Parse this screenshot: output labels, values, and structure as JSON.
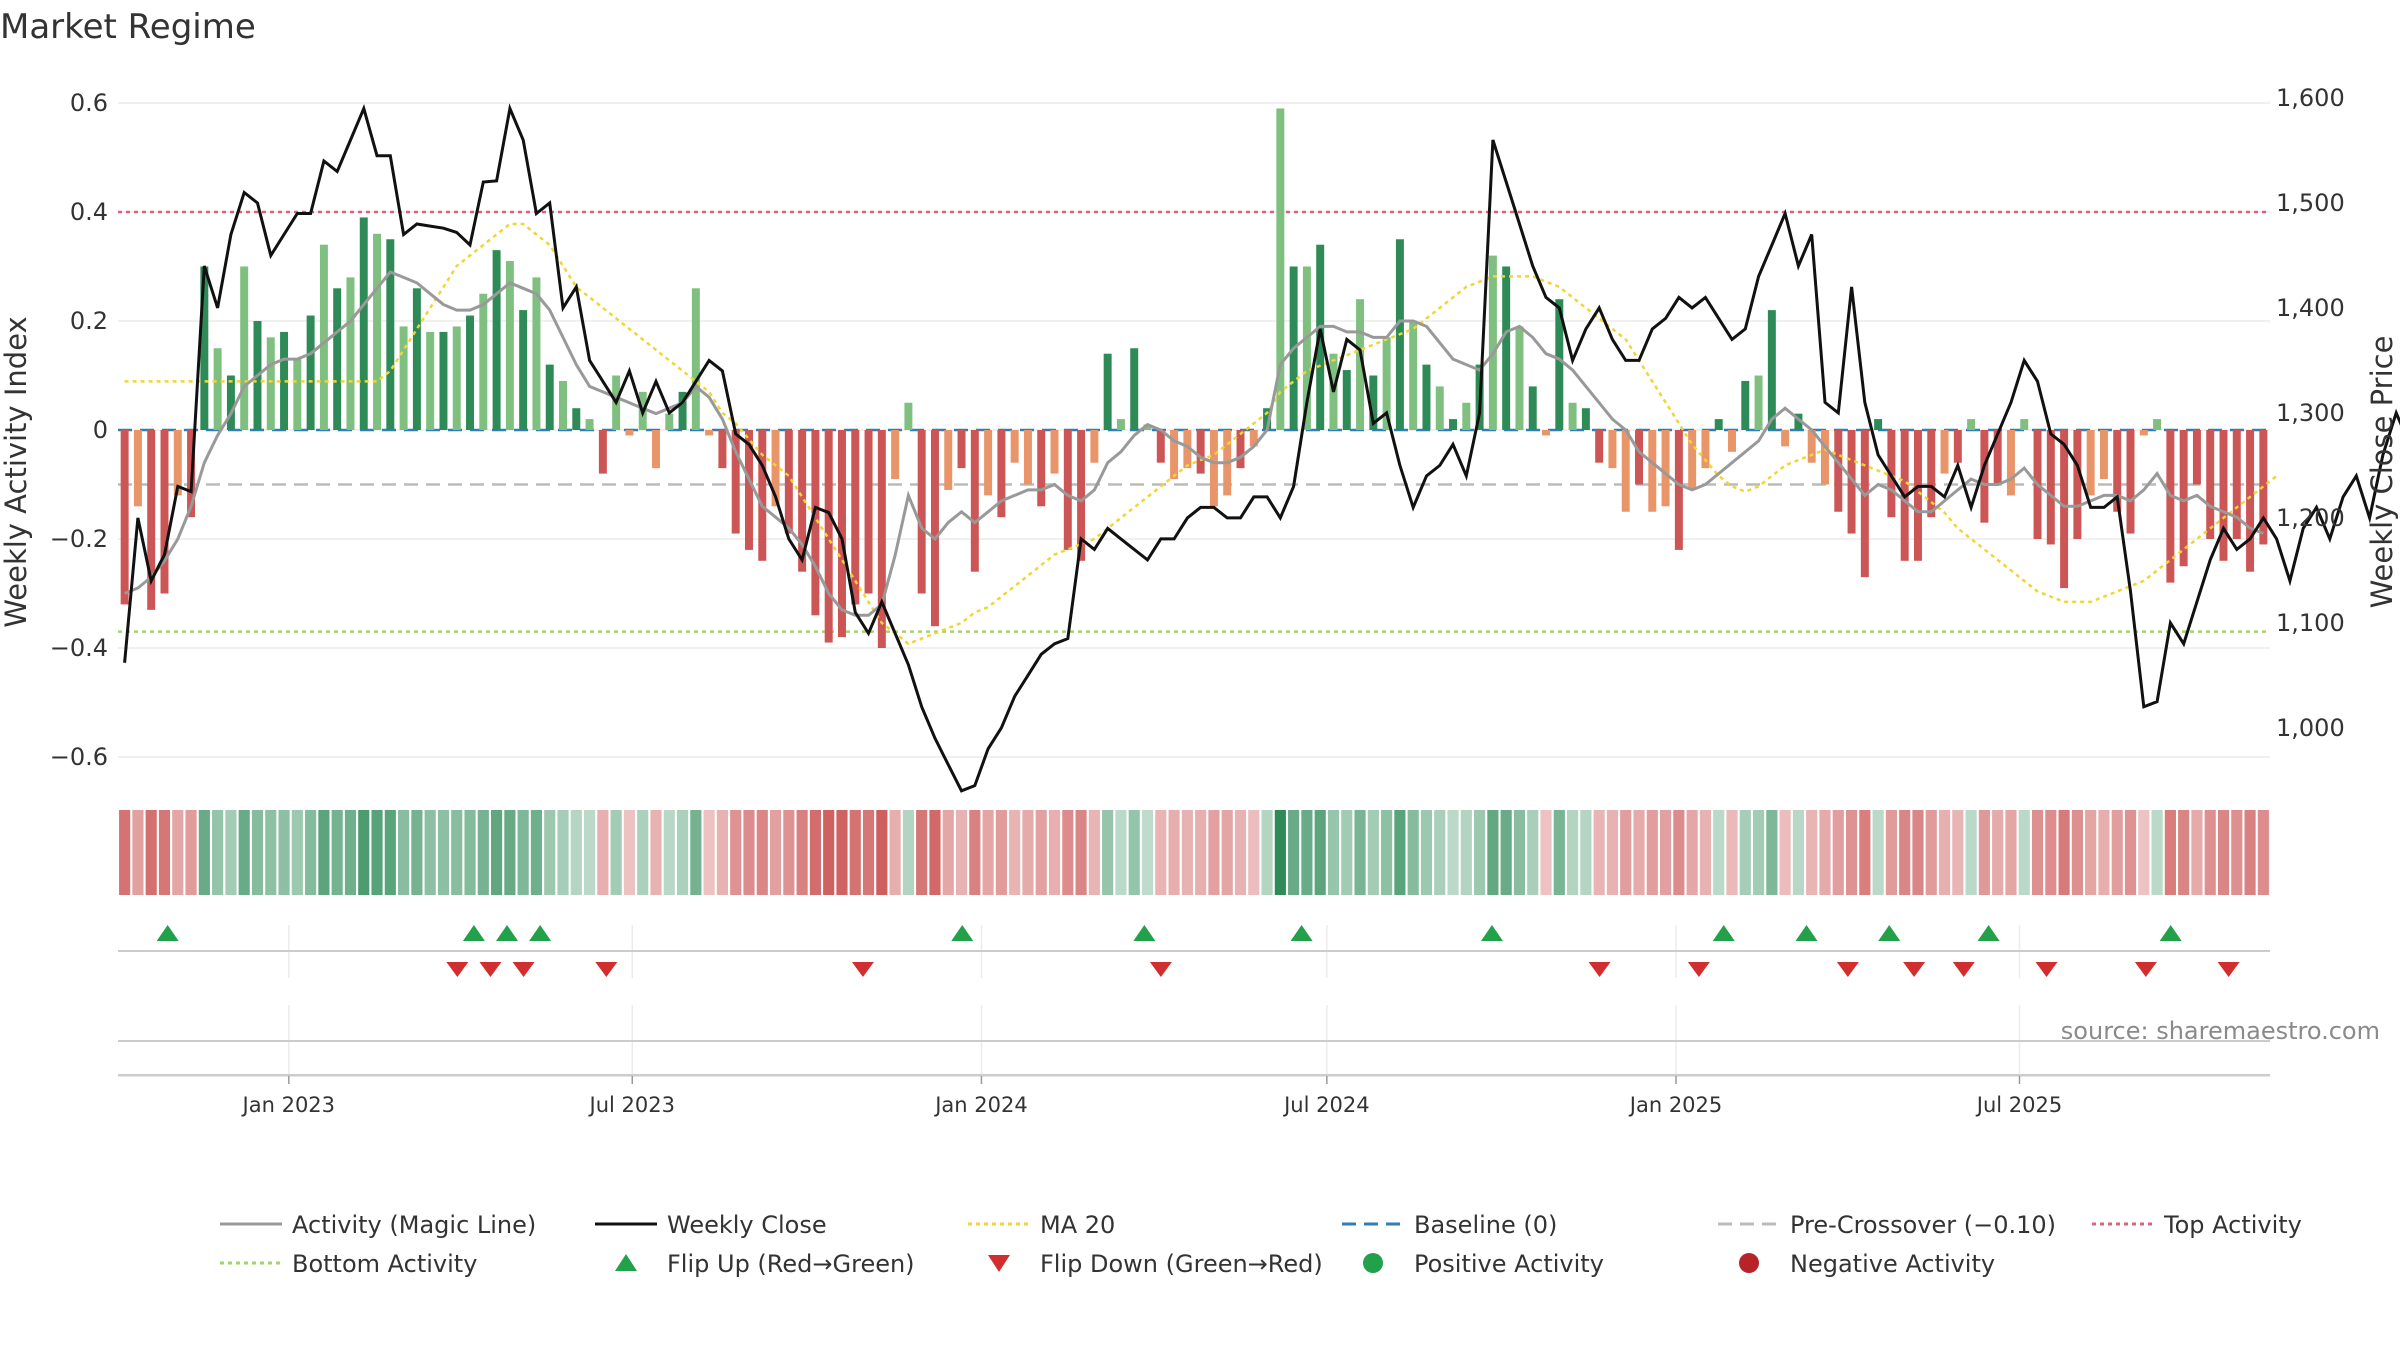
{
  "chart_data": {
    "type": "bar",
    "title": "Market Regime",
    "ylabel_left": "Weekly Activity Index",
    "ylabel_right": "Weekly Close Price",
    "ylim_left": [
      -0.65,
      0.65
    ],
    "ylim_right": [
      930,
      1615
    ],
    "yticks_left": [
      "0.6",
      "0.4",
      "0.2",
      "0",
      "−0.2",
      "−0.4",
      "−0.6"
    ],
    "yticks_right": [
      "1,600",
      "1,500",
      "1,400",
      "1,300",
      "1,200",
      "1,100",
      "1,000"
    ],
    "xticks": [
      "Jan 2023",
      "Jul 2023",
      "Jan 2024",
      "Jul 2024",
      "Jan 2025",
      "Jul 2025"
    ],
    "source": "source: sharemaestro.com",
    "start_date": "2022-10-03",
    "activity": [
      -0.32,
      -0.14,
      -0.33,
      -0.3,
      -0.12,
      -0.16,
      0.3,
      0.15,
      0.1,
      0.3,
      0.2,
      0.17,
      0.18,
      0.13,
      0.21,
      0.34,
      0.26,
      0.28,
      0.39,
      0.36,
      0.35,
      0.19,
      0.26,
      0.18,
      0.18,
      0.19,
      0.21,
      0.25,
      0.33,
      0.31,
      0.22,
      0.28,
      0.12,
      0.09,
      0.04,
      0.02,
      -0.08,
      0.1,
      -0.01,
      0.07,
      -0.07,
      0.03,
      0.07,
      0.26,
      -0.01,
      -0.07,
      -0.19,
      -0.22,
      -0.24,
      -0.14,
      -0.19,
      -0.26,
      -0.34,
      -0.39,
      -0.38,
      -0.32,
      -0.3,
      -0.4,
      -0.09,
      0.05,
      -0.3,
      -0.36,
      -0.11,
      -0.07,
      -0.26,
      -0.12,
      -0.16,
      -0.06,
      -0.1,
      -0.14,
      -0.08,
      -0.22,
      -0.24,
      -0.06,
      0.14,
      0.02,
      0.15,
      0.01,
      -0.06,
      -0.09,
      -0.07,
      -0.08,
      -0.14,
      -0.12,
      -0.07,
      -0.03,
      0.04,
      0.59,
      0.3,
      0.3,
      0.34,
      0.14,
      0.11,
      0.24,
      0.1,
      0.17,
      0.35,
      0.2,
      0.12,
      0.08,
      0.02,
      0.05,
      0.12,
      0.32,
      0.3,
      0.19,
      0.08,
      -0.01,
      0.24,
      0.05,
      0.04,
      -0.06,
      -0.07,
      -0.15,
      -0.1,
      -0.15,
      -0.14,
      -0.22,
      -0.11,
      -0.07,
      0.02,
      -0.04,
      0.09,
      0.1,
      0.22,
      -0.03,
      0.03,
      -0.06,
      -0.1,
      -0.15,
      -0.19,
      -0.27,
      0.02,
      -0.16,
      -0.24,
      -0.24,
      -0.16,
      -0.08,
      -0.06,
      0.02,
      -0.17,
      -0.1,
      -0.12,
      0.02,
      -0.2,
      -0.21,
      -0.29,
      -0.2,
      -0.12,
      -0.09,
      -0.15,
      -0.19,
      -0.01,
      0.02,
      -0.28,
      -0.25,
      -0.1,
      -0.2,
      -0.24,
      -0.2,
      -0.26,
      -0.21
    ],
    "magic_line": [
      -0.3,
      -0.29,
      -0.27,
      -0.24,
      -0.2,
      -0.14,
      -0.06,
      -0.01,
      0.03,
      0.08,
      0.1,
      0.12,
      0.13,
      0.13,
      0.14,
      0.16,
      0.18,
      0.2,
      0.23,
      0.26,
      0.29,
      0.28,
      0.27,
      0.25,
      0.23,
      0.22,
      0.22,
      0.23,
      0.25,
      0.27,
      0.26,
      0.25,
      0.22,
      0.17,
      0.12,
      0.08,
      0.07,
      0.06,
      0.05,
      0.04,
      0.03,
      0.04,
      0.05,
      0.08,
      0.06,
      0.02,
      -0.04,
      -0.09,
      -0.14,
      -0.16,
      -0.18,
      -0.21,
      -0.25,
      -0.3,
      -0.33,
      -0.34,
      -0.34,
      -0.32,
      -0.23,
      -0.12,
      -0.18,
      -0.2,
      -0.17,
      -0.15,
      -0.17,
      -0.15,
      -0.13,
      -0.12,
      -0.11,
      -0.11,
      -0.1,
      -0.12,
      -0.13,
      -0.11,
      -0.06,
      -0.04,
      -0.01,
      0.01,
      0.0,
      -0.02,
      -0.03,
      -0.05,
      -0.06,
      -0.06,
      -0.05,
      -0.03,
      0.0,
      0.12,
      0.15,
      0.17,
      0.19,
      0.19,
      0.18,
      0.18,
      0.17,
      0.17,
      0.2,
      0.2,
      0.19,
      0.16,
      0.13,
      0.12,
      0.11,
      0.14,
      0.18,
      0.19,
      0.17,
      0.14,
      0.13,
      0.11,
      0.08,
      0.05,
      0.02,
      0.0,
      -0.04,
      -0.06,
      -0.08,
      -0.1,
      -0.11,
      -0.1,
      -0.08,
      -0.06,
      -0.04,
      -0.02,
      0.02,
      0.04,
      0.02,
      0.0,
      -0.03,
      -0.06,
      -0.09,
      -0.12,
      -0.1,
      -0.11,
      -0.13,
      -0.15,
      -0.15,
      -0.13,
      -0.11,
      -0.09,
      -0.1,
      -0.1,
      -0.09,
      -0.07,
      -0.1,
      -0.12,
      -0.14,
      -0.14,
      -0.13,
      -0.12,
      -0.12,
      -0.13,
      -0.11,
      -0.08,
      -0.12,
      -0.13,
      -0.12,
      -0.14,
      -0.15,
      -0.16,
      -0.18,
      -0.19
    ],
    "weekly_close": [
      1062,
      1200,
      1140,
      1165,
      1230,
      1225,
      1440,
      1400,
      1470,
      1510,
      1500,
      1450,
      1470,
      1490,
      1490,
      1540,
      1530,
      1560,
      1590,
      1545,
      1545,
      1470,
      1480,
      1478,
      1476,
      1472,
      1460,
      1520,
      1521,
      1590,
      1560,
      1490,
      1500,
      1400,
      1420,
      1350,
      1330,
      1310,
      1340,
      1300,
      1330,
      1300,
      1310,
      1330,
      1350,
      1340,
      1280,
      1270,
      1250,
      1220,
      1180,
      1160,
      1210,
      1205,
      1180,
      1110,
      1090,
      1120,
      1090,
      1060,
      1020,
      990,
      965,
      940,
      945,
      980,
      1000,
      1030,
      1050,
      1070,
      1080,
      1085,
      1180,
      1170,
      1190,
      1180,
      1170,
      1160,
      1180,
      1180,
      1200,
      1210,
      1210,
      1200,
      1200,
      1220,
      1220,
      1200,
      1230,
      1310,
      1380,
      1320,
      1370,
      1360,
      1290,
      1300,
      1250,
      1210,
      1240,
      1250,
      1270,
      1240,
      1300,
      1560,
      1520,
      1480,
      1440,
      1410,
      1400,
      1350,
      1380,
      1400,
      1370,
      1350,
      1350,
      1380,
      1390,
      1410,
      1400,
      1410,
      1390,
      1370,
      1380,
      1430,
      1460,
      1490,
      1440,
      1470,
      1310,
      1300,
      1420,
      1310,
      1260,
      1240,
      1220,
      1230,
      1230,
      1220,
      1250,
      1210,
      1250,
      1280,
      1310,
      1350,
      1330,
      1280,
      1270,
      1250,
      1210,
      1210,
      1220,
      1130,
      1020,
      1025,
      1100,
      1080,
      1120,
      1160,
      1190,
      1170,
      1180,
      1200,
      1180,
      1140,
      1190,
      1210,
      1180,
      1220,
      1240,
      1200,
      1260,
      1300,
      1270,
      1290,
      1300,
      1250,
      1260,
      1265
    ],
    "ma20": [
      1330,
      1330,
      1330,
      1330,
      1330,
      1330,
      1330,
      1330,
      1330,
      1330,
      1330,
      1330,
      1330,
      1330,
      1330,
      1330,
      1330,
      1330,
      1330,
      1330,
      1340,
      1360,
      1380,
      1400,
      1420,
      1440,
      1450,
      1460,
      1470,
      1480,
      1480,
      1470,
      1460,
      1440,
      1420,
      1410,
      1400,
      1390,
      1380,
      1370,
      1360,
      1350,
      1340,
      1330,
      1320,
      1300,
      1290,
      1275,
      1260,
      1250,
      1240,
      1220,
      1200,
      1180,
      1160,
      1140,
      1120,
      1100,
      1090,
      1080,
      1085,
      1090,
      1095,
      1100,
      1110,
      1115,
      1125,
      1135,
      1145,
      1155,
      1165,
      1170,
      1175,
      1180,
      1190,
      1200,
      1210,
      1220,
      1230,
      1240,
      1250,
      1255,
      1260,
      1270,
      1280,
      1290,
      1300,
      1320,
      1330,
      1340,
      1345,
      1350,
      1355,
      1360,
      1365,
      1370,
      1375,
      1380,
      1390,
      1400,
      1410,
      1420,
      1425,
      1430,
      1430,
      1430,
      1430,
      1425,
      1420,
      1410,
      1400,
      1390,
      1380,
      1370,
      1350,
      1330,
      1310,
      1290,
      1270,
      1255,
      1240,
      1230,
      1225,
      1230,
      1240,
      1250,
      1255,
      1260,
      1265,
      1260,
      1255,
      1250,
      1245,
      1240,
      1235,
      1225,
      1215,
      1205,
      1190,
      1180,
      1170,
      1160,
      1150,
      1140,
      1130,
      1125,
      1120,
      1120,
      1120,
      1125,
      1130,
      1135,
      1140,
      1150,
      1160,
      1170,
      1180,
      1190,
      1200,
      1210,
      1220,
      1230,
      1240
    ],
    "flip_up_idx": [
      6,
      43,
      47,
      51,
      102,
      124,
      143,
      166,
      194,
      204,
      214,
      226,
      248
    ],
    "flip_down_idx": [
      41,
      45,
      49,
      59,
      90,
      126,
      179,
      191,
      209,
      217,
      223,
      233,
      245,
      255
    ],
    "baseline": 0,
    "pre_crossover": -0.1,
    "top_activity": 0.4,
    "bottom_activity": -0.37,
    "colors": {
      "strong_green": "#2e8b57",
      "light_green": "#7fbf7f",
      "strong_red": "#cc5555",
      "light_red": "#e8956a",
      "magic_line": "#999999",
      "weekly_close": "#111111",
      "ma20": "#f2d534",
      "baseline": "#2f7fb8",
      "pre_crossover": "#bbbbbb",
      "top_activity": "#d9607f",
      "bottom_activity": "#a6d36e",
      "flip_up": "#23a04a",
      "flip_down": "#d12f2f",
      "positive": "#23a04a",
      "negative": "#b8232a"
    },
    "legend": [
      {
        "label": "Activity (Magic Line)",
        "kind": "line",
        "color": "#999999",
        "dash": ""
      },
      {
        "label": "Weekly Close",
        "kind": "line",
        "color": "#111111",
        "dash": ""
      },
      {
        "label": "MA 20",
        "kind": "line",
        "color": "#f2d534",
        "dash": "4 4"
      },
      {
        "label": "Baseline (0)",
        "kind": "line",
        "color": "#2f7fb8",
        "dash": "14 8"
      },
      {
        "label": "Pre-Crossover (−0.10)",
        "kind": "line",
        "color": "#bbbbbb",
        "dash": "14 8"
      },
      {
        "label": "Top Activity",
        "kind": "line",
        "color": "#d9607f",
        "dash": "4 4"
      },
      {
        "label": "Bottom Activity",
        "kind": "line",
        "color": "#a6d36e",
        "dash": "4 4"
      },
      {
        "label": "Flip Up (Red→Green)",
        "kind": "tri-up",
        "color": "#23a04a"
      },
      {
        "label": "Flip Down (Green→Red)",
        "kind": "tri-down",
        "color": "#d12f2f"
      },
      {
        "label": "Positive Activity",
        "kind": "dot",
        "color": "#23a04a"
      },
      {
        "label": "Negative Activity",
        "kind": "dot",
        "color": "#b8232a"
      }
    ]
  }
}
